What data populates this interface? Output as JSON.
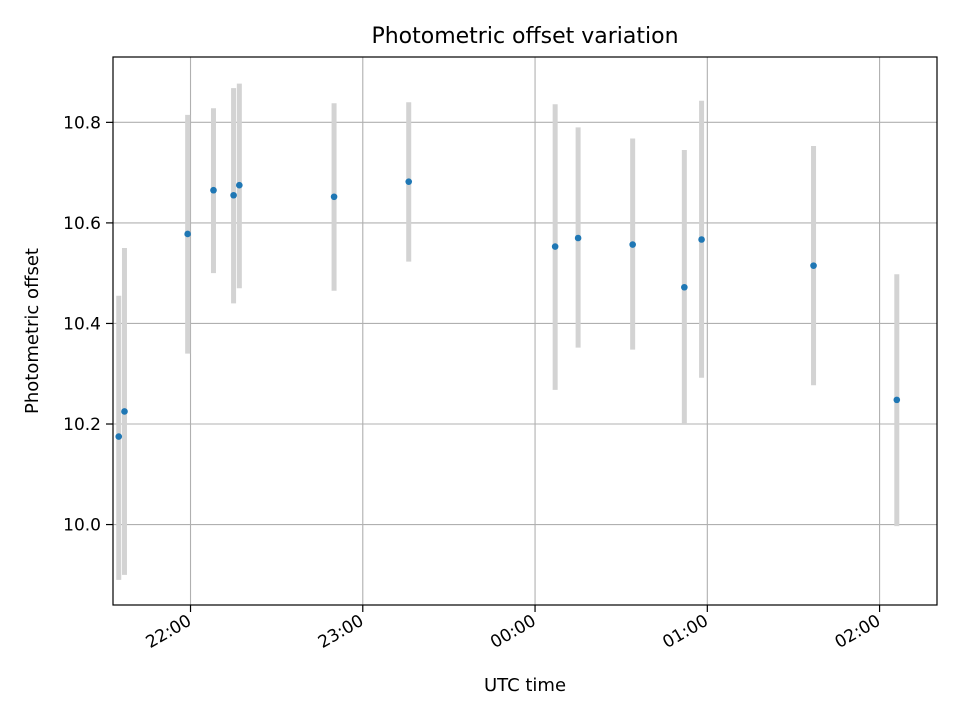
{
  "chart_data": {
    "type": "scatter",
    "title": "Photometric offset variation",
    "xlabel": "UTC time",
    "ylabel": "Photometric offset",
    "x_tick_labels": [
      "22:00",
      "23:00",
      "00:00",
      "01:00",
      "02:00"
    ],
    "x_tick_times": [
      "22:00",
      "23:00",
      "00:00",
      "01:00",
      "02:00"
    ],
    "y_ticks": [
      10.0,
      10.2,
      10.4,
      10.6,
      10.8
    ],
    "y_tick_labels": [
      "10.0",
      "10.2",
      "10.4",
      "10.6",
      "10.8"
    ],
    "xlim": [
      "21:33",
      "02:20"
    ],
    "ylim": [
      9.84,
      10.93
    ],
    "grid": true,
    "marker_color": "#1f77b4",
    "errorbar_color": "#d3d3d3",
    "points": [
      {
        "time": "21:35",
        "y": 10.175,
        "err_low": 9.89,
        "err_high": 10.455
      },
      {
        "time": "21:37",
        "y": 10.225,
        "err_low": 9.9,
        "err_high": 10.55
      },
      {
        "time": "21:59",
        "y": 10.578,
        "err_low": 10.34,
        "err_high": 10.815
      },
      {
        "time": "22:08",
        "y": 10.665,
        "err_low": 10.5,
        "err_high": 10.828
      },
      {
        "time": "22:15",
        "y": 10.655,
        "err_low": 10.44,
        "err_high": 10.868
      },
      {
        "time": "22:17",
        "y": 10.675,
        "err_low": 10.47,
        "err_high": 10.877
      },
      {
        "time": "22:50",
        "y": 10.652,
        "err_low": 10.465,
        "err_high": 10.838
      },
      {
        "time": "23:16",
        "y": 10.682,
        "err_low": 10.523,
        "err_high": 10.84
      },
      {
        "time": "00:07",
        "y": 10.553,
        "err_low": 10.268,
        "err_high": 10.836
      },
      {
        "time": "00:15",
        "y": 10.57,
        "err_low": 10.352,
        "err_high": 10.79
      },
      {
        "time": "00:34",
        "y": 10.557,
        "err_low": 10.348,
        "err_high": 10.768
      },
      {
        "time": "00:52",
        "y": 10.472,
        "err_low": 10.2,
        "err_high": 10.745
      },
      {
        "time": "00:58",
        "y": 10.567,
        "err_low": 10.292,
        "err_high": 10.843
      },
      {
        "time": "01:37",
        "y": 10.515,
        "err_low": 10.277,
        "err_high": 10.753
      },
      {
        "time": "02:06",
        "y": 10.248,
        "err_low": 9.997,
        "err_high": 10.498
      }
    ]
  }
}
